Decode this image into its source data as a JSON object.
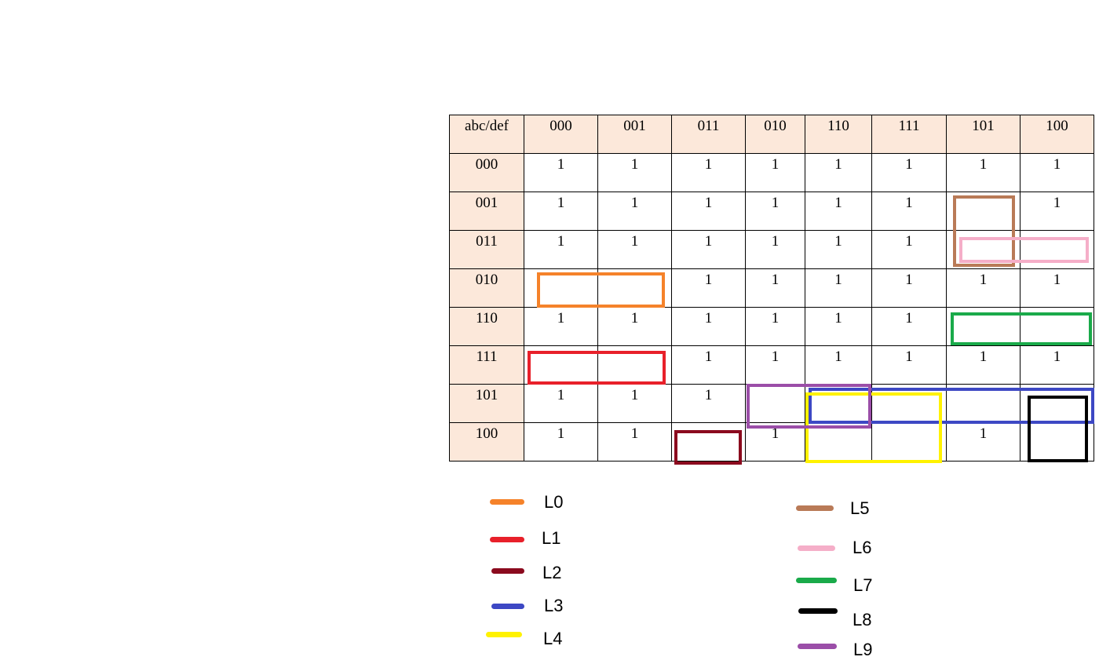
{
  "kmap": {
    "corner": "abc/def",
    "columns": [
      "000",
      "001",
      "011",
      "010",
      "110",
      "111",
      "101",
      "100"
    ],
    "rows": [
      {
        "label": "000",
        "cells": [
          "1",
          "1",
          "1",
          "1",
          "1",
          "1",
          "1",
          "1"
        ]
      },
      {
        "label": "001",
        "cells": [
          "1",
          "1",
          "1",
          "1",
          "1",
          "1",
          "",
          "1"
        ]
      },
      {
        "label": "011",
        "cells": [
          "1",
          "1",
          "1",
          "1",
          "1",
          "1",
          "",
          ""
        ]
      },
      {
        "label": "010",
        "cells": [
          "",
          "",
          "1",
          "1",
          "1",
          "1",
          "1",
          "1"
        ]
      },
      {
        "label": "110",
        "cells": [
          "1",
          "1",
          "1",
          "1",
          "1",
          "1",
          "",
          ""
        ]
      },
      {
        "label": "111",
        "cells": [
          "",
          "",
          "1",
          "1",
          "1",
          "1",
          "1",
          "1"
        ]
      },
      {
        "label": "101",
        "cells": [
          "1",
          "1",
          "1",
          "",
          "",
          "",
          "",
          ""
        ]
      },
      {
        "label": "100",
        "cells": [
          "1",
          "1",
          "",
          "1",
          "",
          "",
          "1",
          ""
        ]
      }
    ]
  },
  "groups": [
    {
      "id": "L0",
      "color": "#f5822a"
    },
    {
      "id": "L1",
      "color": "#e8202a"
    },
    {
      "id": "L2",
      "color": "#8b0a1e"
    },
    {
      "id": "L3",
      "color": "#3d48c4"
    },
    {
      "id": "L4",
      "color": "#fff200"
    },
    {
      "id": "L5",
      "color": "#b97a57"
    },
    {
      "id": "L6",
      "color": "#f5aec8"
    },
    {
      "id": "L7",
      "color": "#1aaa4a"
    },
    {
      "id": "L8",
      "color": "#000000"
    },
    {
      "id": "L9",
      "color": "#9b4ea8"
    }
  ],
  "legend": {
    "labels": [
      "L0",
      "L1",
      "L2",
      "L3",
      "L4",
      "L5",
      "L6",
      "L7",
      "L8",
      "L9"
    ]
  }
}
